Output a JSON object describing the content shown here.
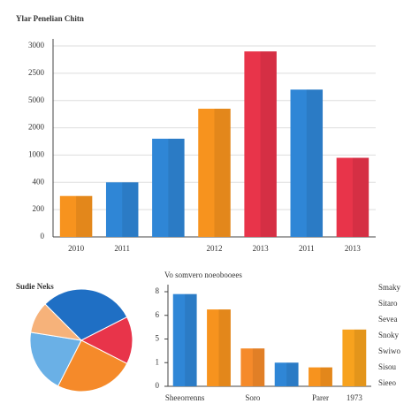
{
  "chart_data": [
    {
      "type": "bar",
      "title": "Ylar Penelian Chitn",
      "categories": [
        "2010",
        "2011",
        null,
        "2012",
        "2013",
        "2011",
        "2013"
      ],
      "values": [
        1.5,
        2.0,
        3.6,
        4.7,
        6.8,
        5.4,
        2.9
      ],
      "colors": [
        "#f7931e",
        "#2f86d6",
        "#2f86d6",
        "#f7931e",
        "#e8344a",
        "#2f86d6",
        "#e8344a"
      ],
      "ylim": [
        0,
        7
      ],
      "yticks": [
        {
          "value": 0,
          "label": "0"
        },
        {
          "value": 1,
          "label": "200"
        },
        {
          "value": 2,
          "label": "400"
        },
        {
          "value": 3,
          "label": "1000"
        },
        {
          "value": 4,
          "label": "2000"
        },
        {
          "value": 5,
          "label": "5000"
        },
        {
          "value": 6,
          "label": "2500"
        },
        {
          "value": 7,
          "label": "3000"
        }
      ],
      "grid": true
    },
    {
      "type": "pie",
      "title": "Sudie Neks",
      "values": [
        30,
        15,
        25,
        20,
        10
      ],
      "colors": [
        "#1f6fc4",
        "#e8344a",
        "#f58a2a",
        "#6ab0e6",
        "#f6b27a"
      ]
    },
    {
      "type": "bar",
      "title": "Vo somvero noeobooees",
      "categories": [
        "Sheeorrenns",
        null,
        "Soro",
        null,
        "Parer",
        "1973"
      ],
      "values": [
        3.9,
        3.25,
        1.6,
        1.0,
        0.8,
        2.4
      ],
      "colors": [
        "#2f86d6",
        "#f7931e",
        "#f58a2a",
        "#2f86d6",
        "#f7931e",
        "#f7a21e"
      ],
      "ylim": [
        0,
        4
      ],
      "yticks": [
        {
          "value": 0,
          "label": "0"
        },
        {
          "value": 1,
          "label": "1"
        },
        {
          "value": 2,
          "label": "5"
        },
        {
          "value": 3,
          "label": "6"
        },
        {
          "value": 4,
          "label": "8"
        }
      ],
      "legend": [
        "Smaky",
        "Sitaro",
        "Sevea",
        "Snoky",
        "Swiwo",
        "Sisou",
        "Sieeo"
      ],
      "grid": false
    }
  ]
}
